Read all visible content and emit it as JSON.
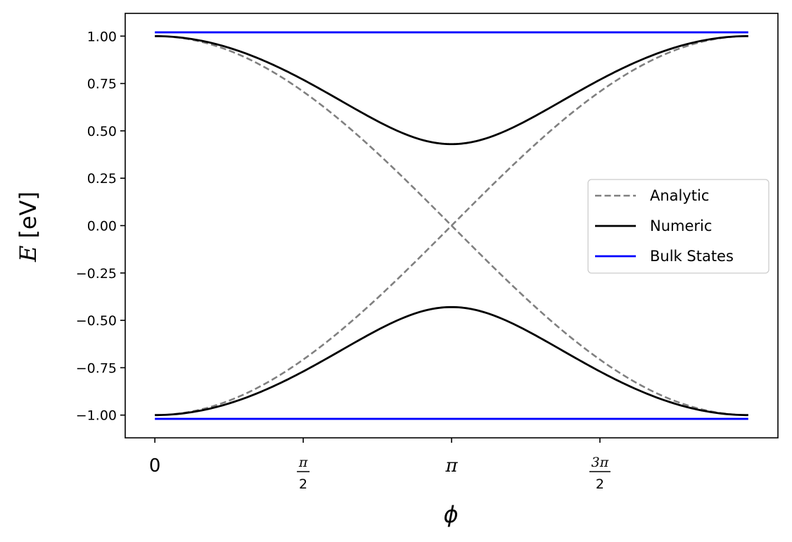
{
  "chart_data": {
    "type": "line",
    "xlabel": "ϕ",
    "ylabel_symbol": "E",
    "ylabel_unit": "[eV]",
    "xlim": [
      -0.3142,
      6.5973
    ],
    "ylim": [
      -1.12,
      1.12
    ],
    "xticks": [
      {
        "value": 0,
        "label": "0"
      },
      {
        "value": 1.5708,
        "numerator": "π",
        "denominator": "2"
      },
      {
        "value": 3.1416,
        "label": "π"
      },
      {
        "value": 4.7124,
        "numerator": "3π",
        "denominator": "2"
      }
    ],
    "yticks": [
      {
        "value": 1.0,
        "label": "1.00"
      },
      {
        "value": 0.75,
        "label": "0.75"
      },
      {
        "value": 0.5,
        "label": "0.50"
      },
      {
        "value": 0.25,
        "label": "0.25"
      },
      {
        "value": 0.0,
        "label": "0.00"
      },
      {
        "value": -0.25,
        "label": "−0.25"
      },
      {
        "value": -0.5,
        "label": "−0.50"
      },
      {
        "value": -0.75,
        "label": "−0.75"
      },
      {
        "value": -1.0,
        "label": "−1.00"
      }
    ],
    "legend_position": "center-right",
    "series": [
      {
        "name": "Analytic",
        "color": "#808080",
        "style": "dashed",
        "x": [
          0,
          0.7854,
          1.5708,
          2.3562,
          3.1416,
          3.927,
          4.7124,
          5.4978,
          6.2832
        ],
        "branches": [
          [
            1.0,
            0.924,
            0.707,
            0.383,
            0.0,
            -0.383,
            -0.707,
            -0.924,
            -1.0
          ],
          [
            -1.0,
            -0.924,
            -0.707,
            -0.383,
            0.0,
            0.383,
            0.707,
            0.924,
            1.0
          ]
        ]
      },
      {
        "name": "Numeric",
        "color": "#000000",
        "style": "solid",
        "x": [
          0,
          0.7854,
          1.5708,
          2.3562,
          3.1416,
          3.927,
          4.7124,
          5.4978,
          6.2832
        ],
        "branches": [
          [
            1.0,
            0.935,
            0.757,
            0.535,
            0.43,
            0.535,
            0.757,
            0.935,
            1.0
          ],
          [
            -1.0,
            -0.935,
            -0.757,
            -0.535,
            -0.43,
            -0.535,
            -0.757,
            -0.935,
            -1.0
          ]
        ]
      },
      {
        "name": "Bulk States",
        "color": "#0000ff",
        "style": "solid",
        "x": [
          0,
          6.2832
        ],
        "branches": [
          [
            1.02,
            1.02
          ],
          [
            -1.02,
            -1.02
          ]
        ]
      }
    ]
  }
}
